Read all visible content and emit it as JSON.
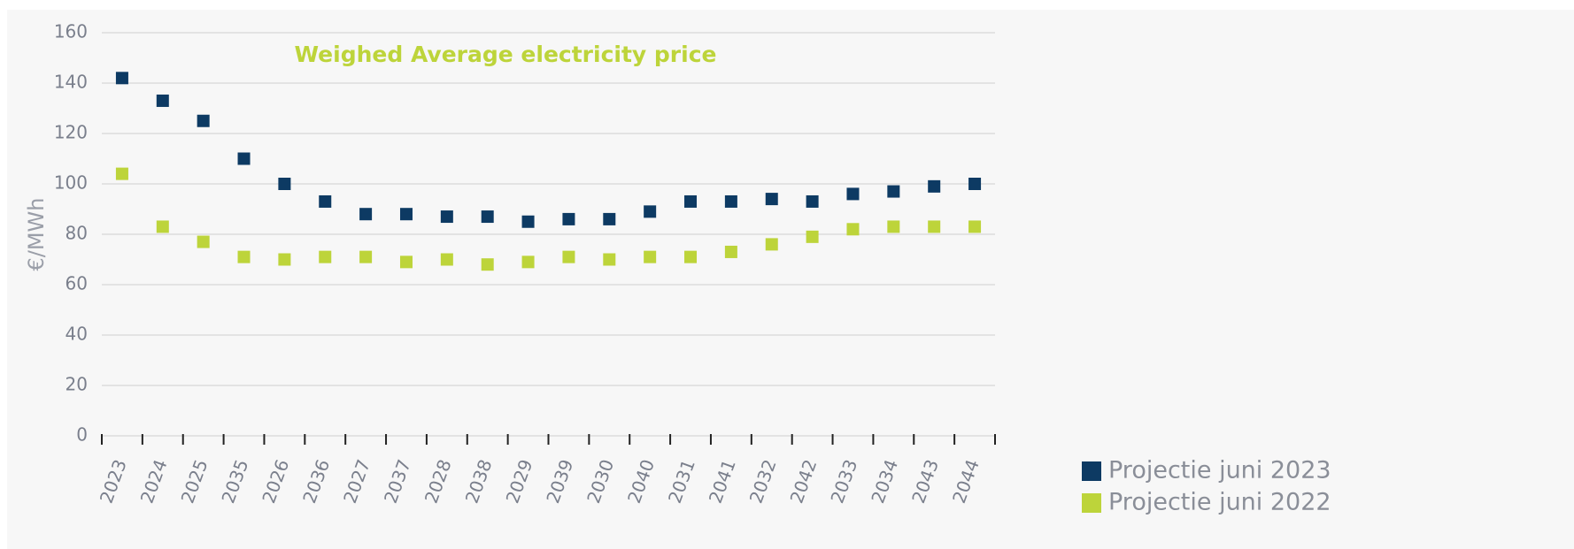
{
  "chart_data": {
    "type": "scatter",
    "title": "Weighed Average electricity price",
    "y_label": "€/MWh",
    "categories": [
      "2023",
      "2024",
      "2025",
      "2035",
      "2026",
      "2036",
      "2027",
      "2037",
      "2028",
      "2038",
      "2029",
      "2039",
      "2030",
      "2040",
      "2031",
      "2041",
      "2032",
      "2042",
      "2033",
      "2034",
      "2043",
      "2044"
    ],
    "series": [
      {
        "name": "Projectie juni 2023",
        "color": "#0d3a63",
        "values": [
          142,
          133,
          125,
          110,
          100,
          93,
          88,
          88,
          87,
          87,
          85,
          86,
          86,
          89,
          93,
          93,
          94,
          93,
          96,
          97,
          99,
          100
        ]
      },
      {
        "name": "Projectie juni 2022",
        "color": "#bdd43a",
        "values": [
          104,
          83,
          77,
          71,
          70,
          71,
          71,
          69,
          70,
          68,
          69,
          71,
          70,
          71,
          71,
          73,
          76,
          79,
          82,
          83,
          83,
          83
        ]
      }
    ],
    "ylim": [
      0,
      160
    ],
    "yticks": [
      0,
      20,
      40,
      60,
      80,
      100,
      120,
      140,
      160
    ],
    "grid": true,
    "legend": "right"
  }
}
